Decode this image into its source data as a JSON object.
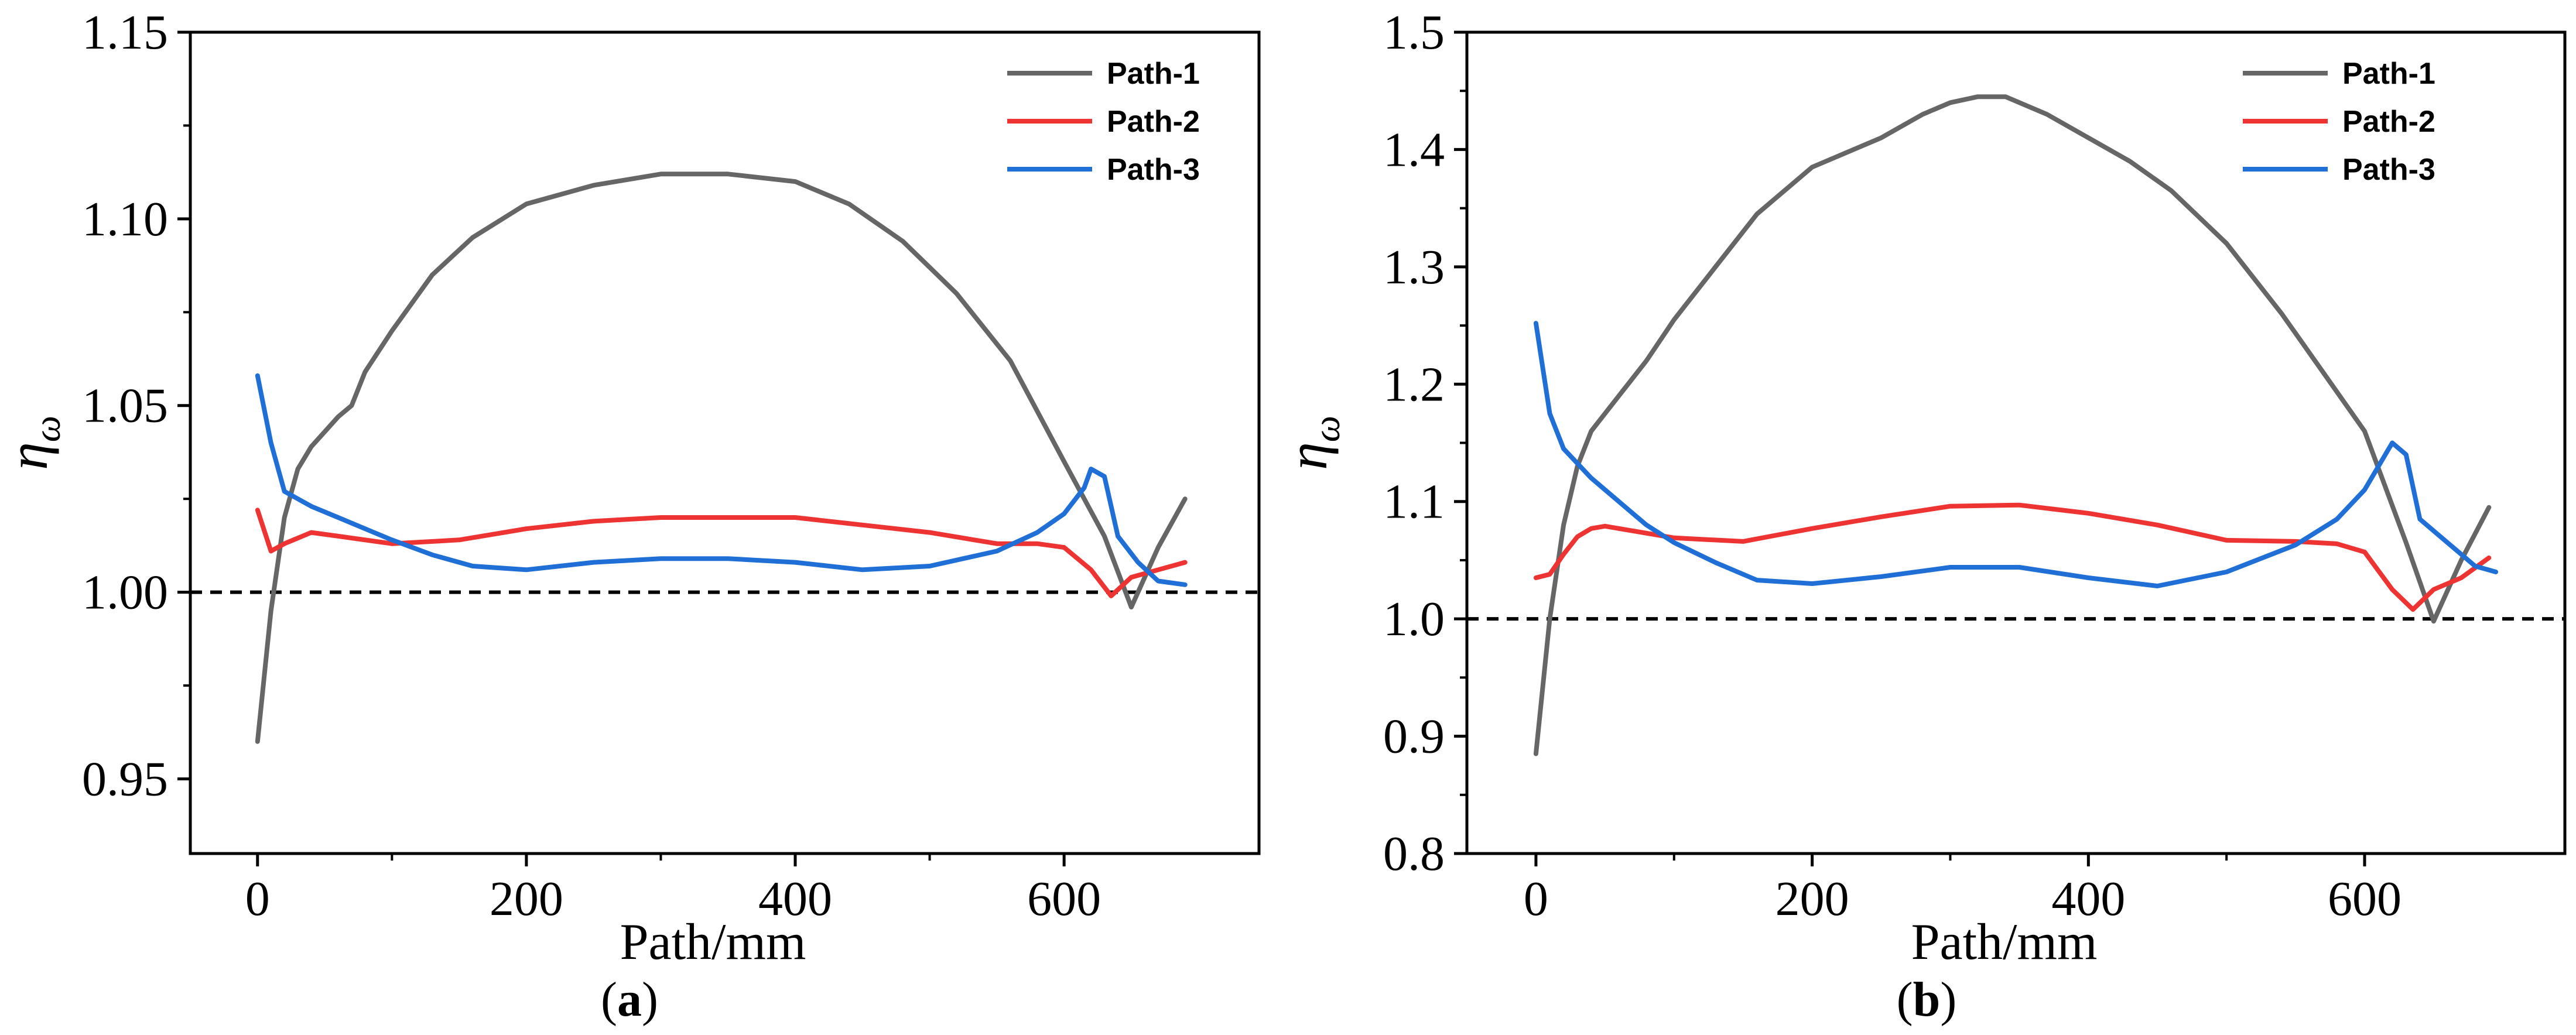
{
  "chart_data": [
    {
      "type": "line",
      "caption": "(a)",
      "caption_letter": "a",
      "xlabel": "Path/mm",
      "ylabel_main": "η",
      "ylabel_sub": "ω",
      "xlim": [
        -50,
        745
      ],
      "ylim": [
        0.93,
        1.15
      ],
      "xticks": [
        0,
        200,
        400,
        600
      ],
      "xtick_labels": [
        "0",
        "200",
        "400",
        "600"
      ],
      "yticks": [
        0.95,
        1.0,
        1.05,
        1.1,
        1.15
      ],
      "ytick_labels": [
        "0.95",
        "1.00",
        "1.05",
        "1.10",
        "1.15"
      ],
      "reference_line": 1.0,
      "legend_position": "top-right",
      "series": [
        {
          "name": "Path-1",
          "color": "#666666",
          "x": [
            0,
            10,
            20,
            30,
            40,
            50,
            60,
            70,
            80,
            100,
            130,
            160,
            200,
            250,
            300,
            350,
            400,
            440,
            480,
            520,
            560,
            600,
            630,
            650,
            670,
            690
          ],
          "y": [
            0.96,
            0.995,
            1.02,
            1.033,
            1.039,
            1.043,
            1.047,
            1.05,
            1.059,
            1.07,
            1.085,
            1.095,
            1.104,
            1.109,
            1.112,
            1.112,
            1.11,
            1.104,
            1.094,
            1.08,
            1.062,
            1.035,
            1.015,
            0.996,
            1.012,
            1.025
          ]
        },
        {
          "name": "Path-2",
          "color": "#ee3333",
          "x": [
            0,
            10,
            20,
            40,
            60,
            100,
            150,
            200,
            250,
            300,
            350,
            400,
            450,
            500,
            550,
            580,
            600,
            620,
            635,
            650,
            670,
            690
          ],
          "y": [
            1.022,
            1.011,
            1.013,
            1.016,
            1.015,
            1.013,
            1.014,
            1.017,
            1.019,
            1.02,
            1.02,
            1.02,
            1.018,
            1.016,
            1.013,
            1.013,
            1.012,
            1.006,
            0.999,
            1.004,
            1.006,
            1.008
          ]
        },
        {
          "name": "Path-3",
          "color": "#1f6fd6",
          "x": [
            0,
            10,
            20,
            40,
            60,
            80,
            100,
            130,
            160,
            200,
            250,
            300,
            350,
            400,
            450,
            500,
            550,
            580,
            600,
            615,
            620,
            630,
            640,
            655,
            670,
            690
          ],
          "y": [
            1.058,
            1.04,
            1.027,
            1.023,
            1.02,
            1.017,
            1.014,
            1.01,
            1.007,
            1.006,
            1.008,
            1.009,
            1.009,
            1.008,
            1.006,
            1.007,
            1.011,
            1.016,
            1.021,
            1.028,
            1.033,
            1.031,
            1.015,
            1.008,
            1.003,
            1.002
          ]
        }
      ]
    },
    {
      "type": "line",
      "caption": "(b)",
      "caption_letter": "b",
      "xlabel": "Path/mm",
      "ylabel_main": "η",
      "ylabel_sub": "ω",
      "xlim": [
        -50,
        745
      ],
      "ylim": [
        0.8,
        1.5
      ],
      "xticks": [
        0,
        200,
        400,
        600
      ],
      "xtick_labels": [
        "0",
        "200",
        "400",
        "600"
      ],
      "yticks": [
        0.8,
        0.9,
        1.0,
        1.1,
        1.2,
        1.3,
        1.4,
        1.5
      ],
      "ytick_labels": [
        "0.8",
        "0.9",
        "1.0",
        "1.1",
        "1.2",
        "1.3",
        "1.4",
        "1.5"
      ],
      "reference_line": 1.0,
      "legend_position": "top-right",
      "series": [
        {
          "name": "Path-1",
          "color": "#666666",
          "x": [
            0,
            10,
            20,
            30,
            40,
            50,
            60,
            80,
            100,
            130,
            160,
            200,
            250,
            280,
            300,
            320,
            340,
            370,
            400,
            430,
            460,
            500,
            540,
            570,
            600,
            630,
            650,
            670,
            690
          ],
          "y": [
            0.885,
            1.0,
            1.08,
            1.13,
            1.16,
            1.175,
            1.19,
            1.22,
            1.255,
            1.3,
            1.345,
            1.385,
            1.41,
            1.43,
            1.44,
            1.445,
            1.445,
            1.43,
            1.41,
            1.39,
            1.365,
            1.32,
            1.26,
            1.21,
            1.16,
            1.065,
            0.998,
            1.05,
            1.095
          ]
        },
        {
          "name": "Path-2",
          "color": "#ee3333",
          "x": [
            0,
            10,
            20,
            30,
            40,
            50,
            70,
            100,
            150,
            200,
            250,
            300,
            350,
            400,
            450,
            500,
            550,
            580,
            600,
            620,
            635,
            650,
            670,
            690
          ],
          "y": [
            1.035,
            1.038,
            1.055,
            1.07,
            1.077,
            1.079,
            1.075,
            1.069,
            1.066,
            1.077,
            1.087,
            1.096,
            1.097,
            1.09,
            1.08,
            1.067,
            1.066,
            1.064,
            1.057,
            1.025,
            1.008,
            1.025,
            1.035,
            1.052
          ]
        },
        {
          "name": "Path-3",
          "color": "#1f6fd6",
          "x": [
            0,
            10,
            20,
            40,
            60,
            80,
            100,
            130,
            160,
            200,
            250,
            300,
            350,
            400,
            450,
            500,
            550,
            580,
            600,
            610,
            620,
            630,
            640,
            660,
            680,
            695
          ],
          "y": [
            1.252,
            1.175,
            1.145,
            1.12,
            1.1,
            1.08,
            1.065,
            1.048,
            1.033,
            1.03,
            1.036,
            1.044,
            1.044,
            1.035,
            1.028,
            1.04,
            1.063,
            1.085,
            1.11,
            1.13,
            1.15,
            1.14,
            1.085,
            1.065,
            1.045,
            1.04
          ]
        }
      ]
    }
  ]
}
